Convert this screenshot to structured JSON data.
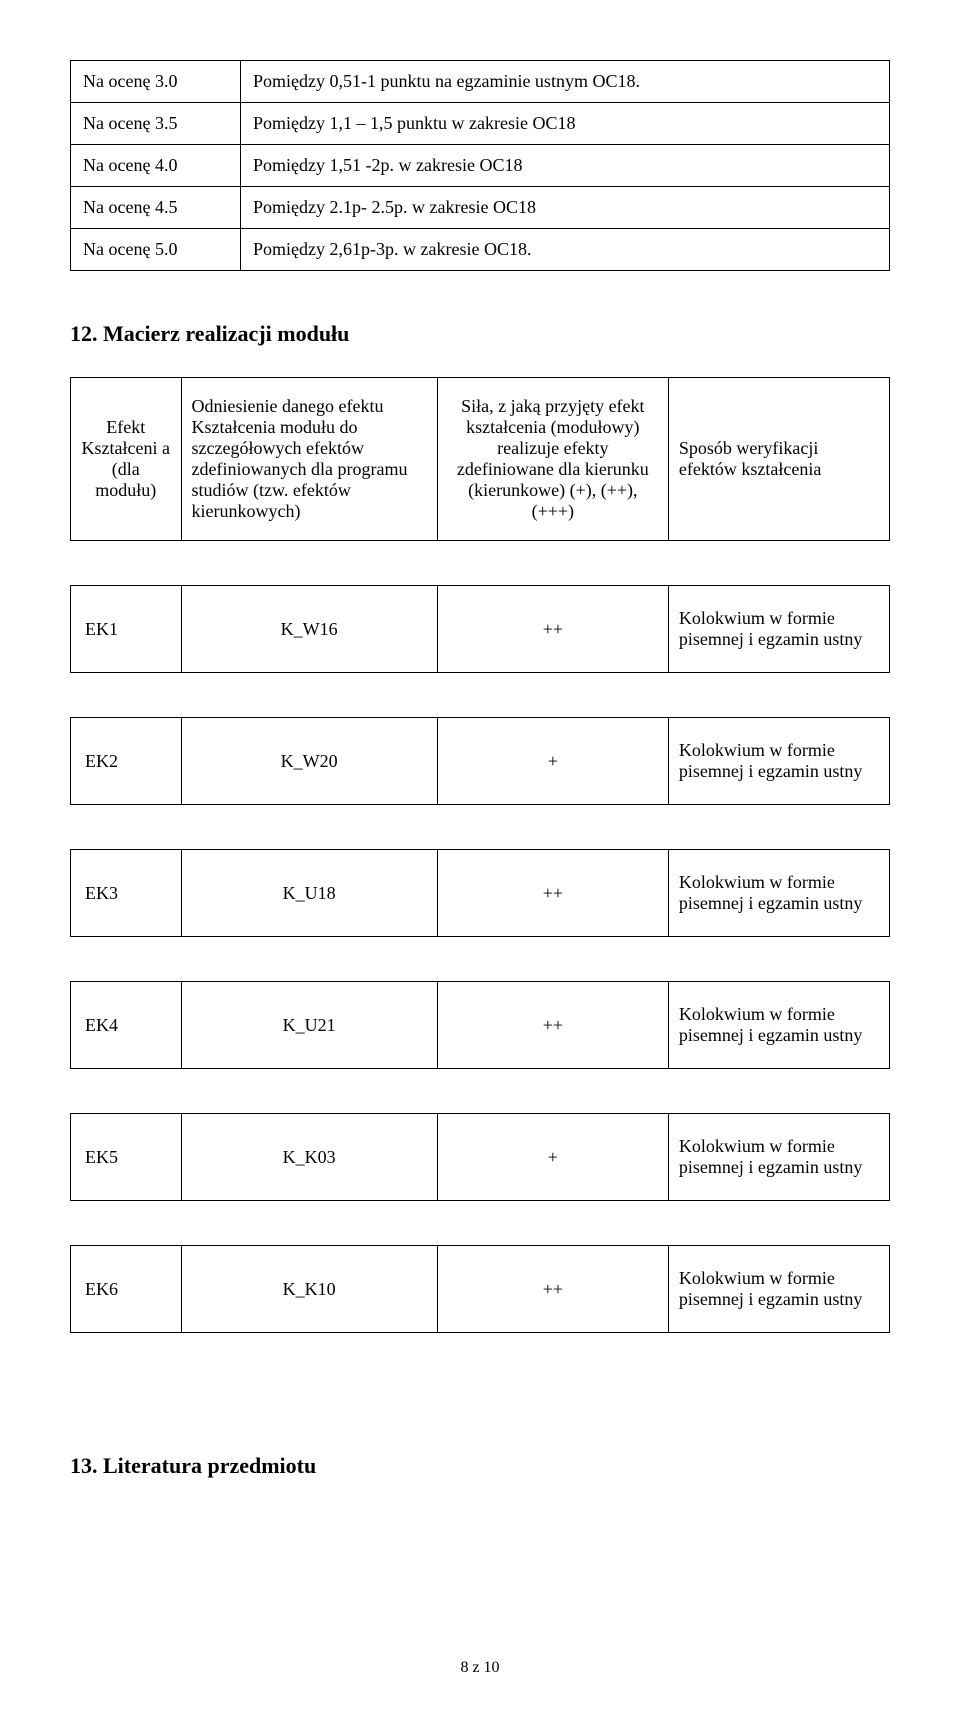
{
  "gradesTable": {
    "rows": [
      {
        "grade": "Na ocenę 3.0",
        "desc": "Pomiędzy 0,51-1 punktu na egzaminie ustnym OC18."
      },
      {
        "grade": "Na ocenę 3.5",
        "desc": "Pomiędzy 1,1 – 1,5 punktu w zakresie OC18"
      },
      {
        "grade": "Na ocenę 4.0",
        "desc": "Pomiędzy 1,51 -2p. w zakresie OC18"
      },
      {
        "grade": "Na ocenę 4.5",
        "desc": "Pomiędzy 2.1p- 2.5p. w zakresie OC18"
      },
      {
        "grade": "Na ocenę 5.0",
        "desc": "Pomiędzy 2,61p-3p. w zakresie OC18."
      }
    ]
  },
  "section12": {
    "title": "12. Macierz realizacji modułu",
    "headers": {
      "col1": "Efekt Kształceni a (dla modułu)",
      "col2": "Odniesienie danego efektu Kształcenia modułu do szczegółowych efektów zdefiniowanych dla programu studiów (tzw. efektów kierunkowych)",
      "col3": "Siła, z jaką przyjęty efekt kształcenia (modułowy) realizuje efekty zdefiniowane dla kierunku (kierunkowe) (+), (++), (+++)",
      "col4": "Sposób weryfikacji efektów kształcenia"
    },
    "rows": [
      {
        "ek": "EK1",
        "ref": "K_W16",
        "strength": "++",
        "verify": "Kolokwium w formie pisemnej i egzamin ustny"
      },
      {
        "ek": "EK2",
        "ref": "K_W20",
        "strength": "+",
        "verify": "Kolokwium w formie pisemnej i egzamin ustny"
      },
      {
        "ek": "EK3",
        "ref": "K_U18",
        "strength": "++",
        "verify": "Kolokwium w formie pisemnej i egzamin ustny"
      },
      {
        "ek": "EK4",
        "ref": "K_U21",
        "strength": "++",
        "verify": "Kolokwium w formie pisemnej i egzamin ustny"
      },
      {
        "ek": "EK5",
        "ref": "K_K03",
        "strength": "+",
        "verify": "Kolokwium w formie pisemnej i egzamin ustny"
      },
      {
        "ek": "EK6",
        "ref": "K_K10",
        "strength": "++",
        "verify": "Kolokwium w formie pisemnej i egzamin ustny"
      }
    ]
  },
  "section13": {
    "title": "13. Literatura przedmiotu"
  },
  "pageNumber": "8 z 10"
}
